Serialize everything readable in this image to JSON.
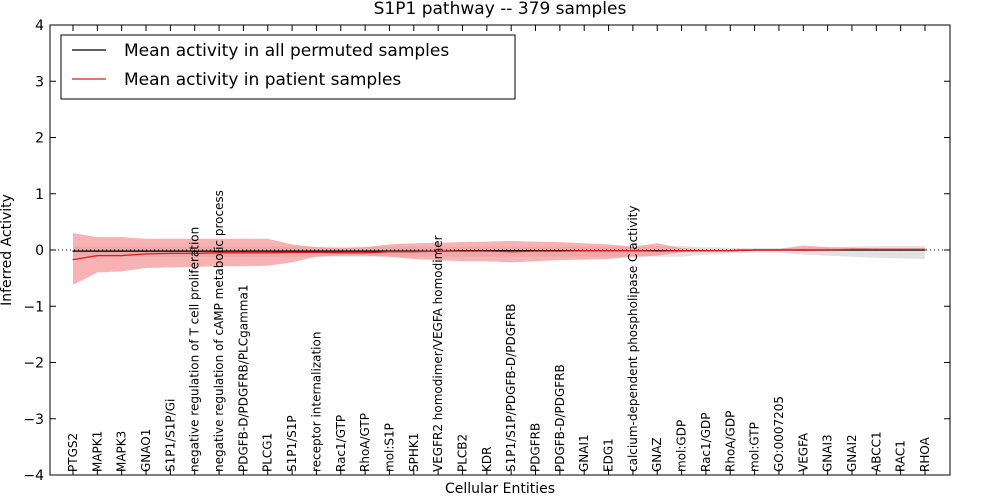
{
  "chart_data": {
    "type": "line",
    "title": "S1P1 pathway -- 379 samples",
    "xlabel": "Cellular Entities",
    "ylabel": "Inferred Activity",
    "ylim": [
      -4,
      4
    ],
    "yticks": [
      -4,
      -3,
      -2,
      -1,
      0,
      1,
      2,
      3,
      4
    ],
    "ytick_labels": [
      "−4",
      "−3",
      "−2",
      "−1",
      "0",
      "1",
      "2",
      "3",
      "4"
    ],
    "legend_position": "top-left",
    "categories": [
      "PTGS2",
      "MAPK1",
      "MAPK3",
      "GNAO1",
      "S1P1/S1P/Gi",
      "negative regulation of T cell proliferation",
      "negative regulation of cAMP metabolic process",
      "PDGFB-D/PDGFRB/PLCgamma1",
      "PLCG1",
      "S1P1/S1P",
      "receptor internalization",
      "Rac1/GTP",
      "RhoA/GTP",
      "mol:S1P",
      "SPHK1",
      "VEGFR2 homodimer/VEGFA homodimer",
      "PLCB2",
      "KDR",
      "S1P1/S1P/PDGFB-D/PDGFRB",
      "PDGFRB",
      "PDGFB-D/PDGFRB",
      "GNAI1",
      "EDG1",
      "calcium-dependent phospholipase C activity",
      "GNAZ",
      "mol:GDP",
      "Rac1/GDP",
      "RhoA/GDP",
      "mol:GTP",
      "GO:0007205",
      "VEGFA",
      "GNAI3",
      "GNAI2",
      "ABCC1",
      "RAC1",
      "RHOA"
    ],
    "series": [
      {
        "name": "Mean activity in all permuted samples",
        "color": "#000000",
        "band_color": "#bfbfbf",
        "values": [
          -0.02,
          -0.02,
          -0.02,
          -0.02,
          -0.02,
          -0.02,
          -0.02,
          -0.02,
          -0.02,
          -0.02,
          -0.02,
          -0.02,
          -0.02,
          -0.02,
          -0.02,
          -0.02,
          -0.01,
          -0.01,
          -0.01,
          -0.01,
          -0.01,
          -0.01,
          -0.01,
          -0.01,
          -0.01,
          -0.01,
          -0.01,
          -0.01,
          0.0,
          0.0,
          0.0,
          0.0,
          0.0,
          0.0,
          0.0,
          0.0
        ],
        "lower": [
          -0.12,
          -0.12,
          -0.12,
          -0.12,
          -0.12,
          -0.12,
          -0.12,
          -0.12,
          -0.12,
          -0.12,
          -0.12,
          -0.12,
          -0.12,
          -0.12,
          -0.12,
          -0.12,
          -0.12,
          -0.12,
          -0.12,
          -0.12,
          -0.12,
          -0.12,
          -0.12,
          -0.12,
          -0.12,
          -0.12,
          -0.08,
          -0.06,
          -0.05,
          -0.05,
          -0.08,
          -0.1,
          -0.12,
          -0.14,
          -0.15,
          -0.16
        ],
        "upper": [
          0.06,
          0.06,
          0.06,
          0.06,
          0.06,
          0.06,
          0.06,
          0.06,
          0.06,
          0.06,
          0.06,
          0.06,
          0.06,
          0.06,
          0.06,
          0.06,
          0.06,
          0.06,
          0.06,
          0.06,
          0.06,
          0.06,
          0.06,
          0.06,
          0.07,
          0.07,
          0.05,
          0.04,
          0.03,
          0.03,
          0.04,
          0.05,
          0.06,
          0.07,
          0.07,
          0.07
        ]
      },
      {
        "name": "Mean activity in patient samples",
        "color": "#e31a1c",
        "band_color": "#f28b8b",
        "values": [
          -0.17,
          -0.1,
          -0.1,
          -0.07,
          -0.06,
          -0.06,
          -0.05,
          -0.05,
          -0.05,
          -0.04,
          -0.04,
          -0.05,
          -0.05,
          -0.03,
          -0.03,
          -0.02,
          -0.02,
          -0.02,
          -0.03,
          -0.02,
          -0.02,
          -0.01,
          -0.01,
          -0.01,
          -0.02,
          -0.01,
          -0.01,
          -0.01,
          0.0,
          0.0,
          0.0,
          0.0,
          0.01,
          0.01,
          0.01,
          0.01
        ],
        "lower": [
          -0.62,
          -0.4,
          -0.38,
          -0.32,
          -0.31,
          -0.3,
          -0.29,
          -0.29,
          -0.28,
          -0.22,
          -0.12,
          -0.1,
          -0.1,
          -0.12,
          -0.16,
          -0.18,
          -0.2,
          -0.2,
          -0.22,
          -0.2,
          -0.18,
          -0.17,
          -0.16,
          -0.12,
          -0.1,
          -0.04,
          -0.02,
          -0.02,
          -0.01,
          -0.01,
          -0.02,
          -0.02,
          -0.01,
          -0.01,
          -0.01,
          -0.01
        ],
        "upper": [
          0.3,
          0.23,
          0.23,
          0.2,
          0.2,
          0.2,
          0.2,
          0.2,
          0.2,
          0.1,
          0.05,
          0.03,
          0.05,
          0.1,
          0.12,
          0.13,
          0.14,
          0.15,
          0.16,
          0.15,
          0.14,
          0.12,
          0.1,
          0.06,
          0.12,
          0.03,
          0.01,
          0.01,
          0.02,
          0.02,
          0.08,
          0.05,
          0.04,
          0.03,
          0.03,
          0.03
        ]
      }
    ],
    "reference_line": {
      "y": 0,
      "style": "dotted"
    }
  }
}
